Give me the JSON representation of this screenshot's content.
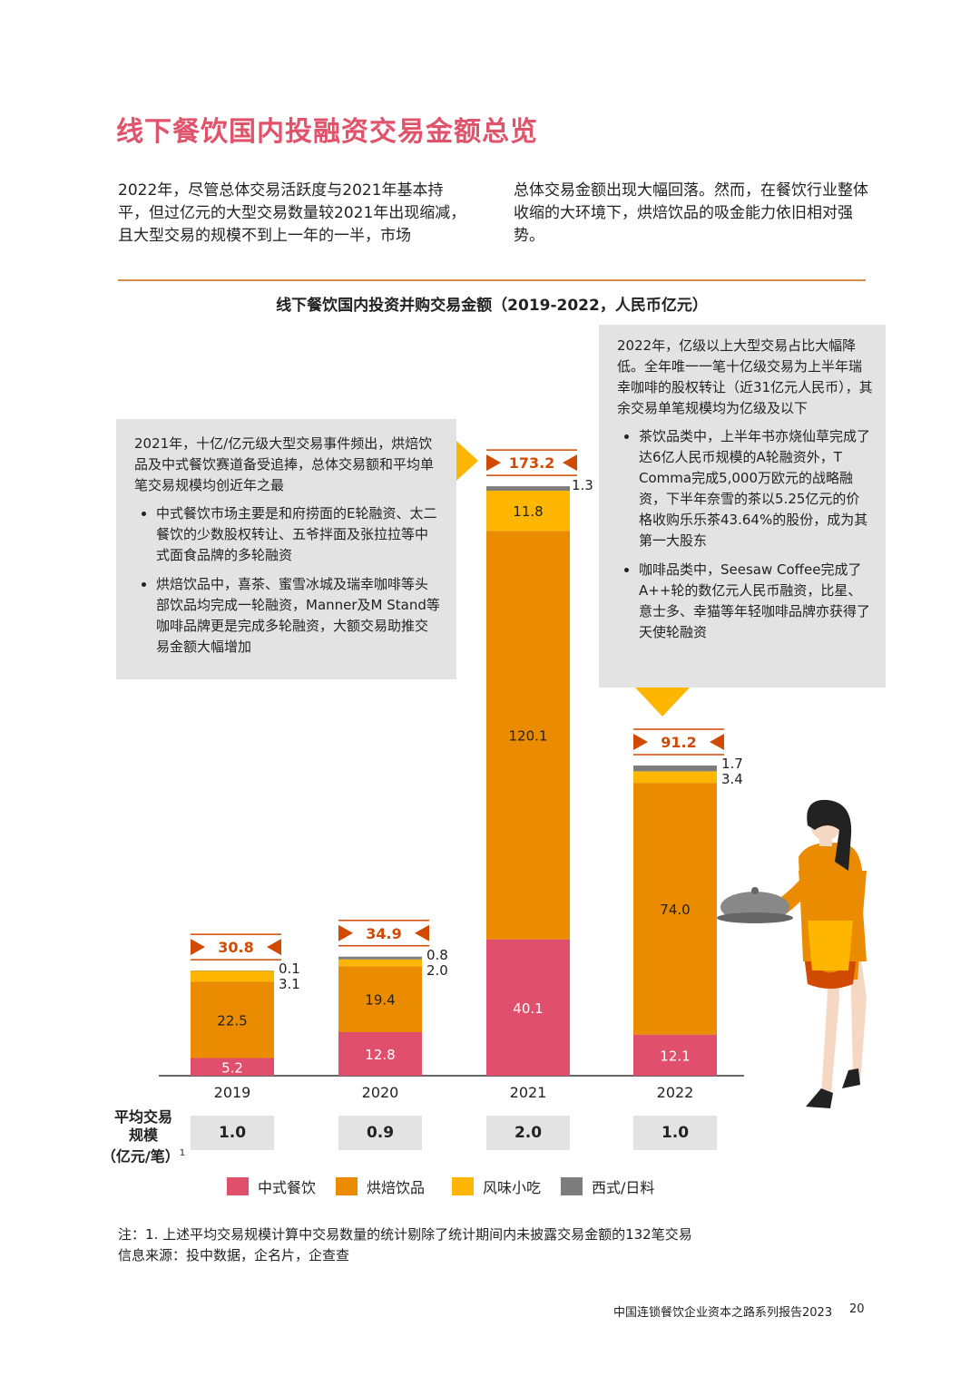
{
  "page_title": "线下餐饮国内投融资交易金额总览",
  "intro": {
    "left": "2022年，尽管总体交易活跃度与2021年基本持平，但过亿元的大型交易数量较2021年出现缩减，且大型交易的规模不到上一年的一半，市场",
    "right": "总体交易金额出现大幅回落。然而，在餐饮行业整体收缩的大环境下，烘焙饮品的吸金能力依旧相对强势。"
  },
  "callout_left": {
    "heading": "2021年，十亿/亿元级大型交易事件频出，烘焙饮品及中式餐饮赛道备受追捧，总体交易额和平均单笔交易规模均创近年之最",
    "bullets": [
      "中式餐饮市场主要是和府捞面的E轮融资、太二餐饮的少数股权转让、五爷拌面及张拉拉等中式面食品牌的多轮融资",
      "烘焙饮品中，喜茶、蜜雪冰城及瑞幸咖啡等头部饮品均完成一轮融资，Manner及M Stand等咖啡品牌更是完成多轮融资，大额交易助推交易金额大幅增加"
    ]
  },
  "callout_right": {
    "heading": "2022年，亿级以上大型交易占比大幅降低。全年唯一一笔十亿级交易为上半年瑞幸咖啡的股权转让（近31亿元人民币），其余交易单笔规模均为亿级及以下",
    "bullets": [
      "茶饮品类中，上半年书亦烧仙草完成了达6亿人民币规模的A轮融资外，T Comma完成5,000万欧元的战略融资，下半年奈雪的茶以5.25亿元的价格收购乐乐茶43.64%的股份，成为其第一大股东",
      "咖啡品类中，Seesaw Coffee完成了A++轮的数亿元人民币融资，比星、意士多、幸猫等年轻咖啡品牌亦获得了天使轮融资"
    ]
  },
  "chart_data": {
    "type": "bar",
    "stacked": true,
    "title": "线下餐饮国内投资并购交易金额（2019-2022，人民币亿元）",
    "categories": [
      "2019",
      "2020",
      "2021",
      "2022"
    ],
    "series": [
      {
        "name": "中式餐饮",
        "values": [
          5.2,
          12.8,
          40.1,
          12.1
        ],
        "color": "#e0506c"
      },
      {
        "name": "烘焙饮品",
        "values": [
          22.5,
          19.4,
          120.1,
          74.0
        ],
        "color": "#eb8c00"
      },
      {
        "name": "风味小吃",
        "values": [
          3.1,
          2.0,
          11.8,
          3.4
        ],
        "color": "#ffb600"
      },
      {
        "name": "西式/日料",
        "values": [
          0.1,
          0.8,
          1.3,
          1.7
        ],
        "color": "#7d7d7d"
      }
    ],
    "totals": [
      30.8,
      34.9,
      173.2,
      91.2
    ],
    "total_color": "#d04a02",
    "avg_label": "平均交易规模（亿元/笔）",
    "avg_label_lines": [
      "平均交易",
      "规模",
      "（亿元/笔）"
    ],
    "avg_label_sup": "1",
    "avg_values": [
      "1.0",
      "0.9",
      "2.0",
      "1.0"
    ]
  },
  "legend": [
    "中式餐饮",
    "烘焙饮品",
    "风味小吃",
    "西式/日料"
  ],
  "notes": {
    "note1": "注：1. 上述平均交易规模计算中交易数量的统计剔除了统计期间内未披露交易金额的132笔交易",
    "source": "信息来源：投中数据，企名片，企查查"
  },
  "footer": {
    "report": "中国连锁餐饮企业资本之路系列报告2023",
    "page": "20"
  }
}
